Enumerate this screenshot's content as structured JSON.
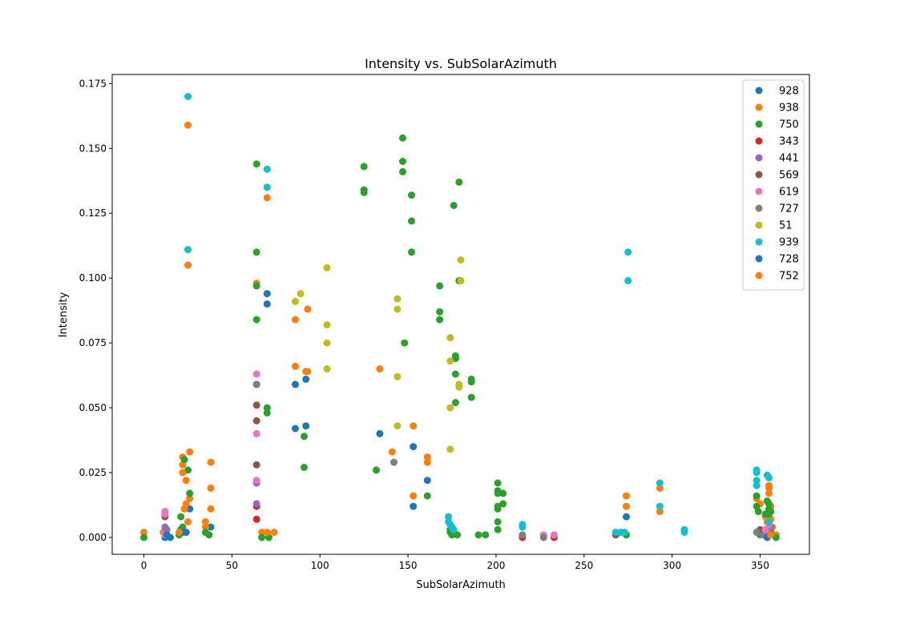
{
  "chart_data": {
    "type": "scatter",
    "title": "Intensity vs. SubSolarAzimuth",
    "xlabel": "SubSolarAzimuth",
    "ylabel": "Intensity",
    "xlim": [
      -18,
      378
    ],
    "ylim": [
      -0.0065,
      0.1785
    ],
    "xticks": [
      0,
      50,
      100,
      150,
      200,
      250,
      300,
      350
    ],
    "yticks": [
      0.0,
      0.025,
      0.05,
      0.075,
      0.1,
      0.125,
      0.15,
      0.175
    ],
    "ytick_labels": [
      "0.000",
      "0.025",
      "0.050",
      "0.075",
      "0.100",
      "0.125",
      "0.150",
      "0.175"
    ],
    "grid": false,
    "legend_position": "top-right",
    "series": [
      {
        "name": "928",
        "color": "#1f77b4",
        "points": [
          [
            12,
            0.0
          ],
          [
            15,
            0.0
          ],
          [
            21,
            0.003
          ],
          [
            24,
            0.002
          ],
          [
            26,
            0.011
          ],
          [
            38,
            0.004
          ],
          [
            70,
            0.094
          ],
          [
            70,
            0.09
          ],
          [
            86,
            0.059
          ],
          [
            86,
            0.042
          ],
          [
            92,
            0.061
          ],
          [
            92,
            0.043
          ],
          [
            134,
            0.04
          ],
          [
            153,
            0.035
          ],
          [
            153,
            0.012
          ],
          [
            161,
            0.022
          ],
          [
            274,
            0.008
          ],
          [
            352,
            0.002
          ]
        ]
      },
      {
        "name": "938",
        "color": "#ff7f0e",
        "points": [
          [
            0,
            0.002
          ],
          [
            11,
            0.002
          ],
          [
            13,
            0.001
          ],
          [
            21,
            0.002
          ],
          [
            22,
            0.031
          ],
          [
            22,
            0.028
          ],
          [
            22,
            0.025
          ],
          [
            23,
            0.011
          ],
          [
            24,
            0.013
          ],
          [
            24,
            0.022
          ],
          [
            25,
            0.159
          ],
          [
            25,
            0.105
          ],
          [
            25,
            0.006
          ],
          [
            26,
            0.015
          ],
          [
            26,
            0.033
          ],
          [
            35,
            0.006
          ],
          [
            35,
            0.004
          ],
          [
            38,
            0.029
          ],
          [
            38,
            0.019
          ],
          [
            38,
            0.011
          ],
          [
            64,
            0.098
          ],
          [
            67,
            0.002
          ],
          [
            70,
            0.135
          ],
          [
            70,
            0.131
          ],
          [
            74,
            0.002
          ],
          [
            86,
            0.084
          ],
          [
            86,
            0.066
          ],
          [
            92,
            0.064
          ],
          [
            93,
            0.088
          ],
          [
            93,
            0.064
          ],
          [
            134,
            0.065
          ],
          [
            141,
            0.033
          ],
          [
            153,
            0.043
          ],
          [
            153,
            0.016
          ],
          [
            161,
            0.031
          ],
          [
            161,
            0.029
          ],
          [
            274,
            0.016
          ],
          [
            274,
            0.012
          ],
          [
            293,
            0.019
          ],
          [
            293,
            0.01
          ],
          [
            348,
            0.015
          ],
          [
            350,
            0.013
          ],
          [
            353,
            0.008
          ],
          [
            354,
            0.006
          ],
          [
            355,
            0.019
          ],
          [
            355,
            0.02
          ],
          [
            355,
            0.017
          ],
          [
            356,
            0.012
          ],
          [
            356,
            0.007
          ],
          [
            357,
            0.004
          ],
          [
            359,
            0.001
          ]
        ]
      },
      {
        "name": "750",
        "color": "#2ca02c",
        "points": [
          [
            0,
            0.0
          ],
          [
            20,
            0.001
          ],
          [
            21,
            0.008
          ],
          [
            22,
            0.004
          ],
          [
            23,
            0.03
          ],
          [
            25,
            0.026
          ],
          [
            26,
            0.017
          ],
          [
            35,
            0.002
          ],
          [
            37,
            0.001
          ],
          [
            64,
            0.144
          ],
          [
            64,
            0.11
          ],
          [
            64,
            0.097
          ],
          [
            64,
            0.084
          ],
          [
            67,
            0.0
          ],
          [
            70,
            0.05
          ],
          [
            70,
            0.048
          ],
          [
            71,
            0.0
          ],
          [
            91,
            0.039
          ],
          [
            91,
            0.027
          ],
          [
            125,
            0.143
          ],
          [
            125,
            0.134
          ],
          [
            125,
            0.133
          ],
          [
            132,
            0.026
          ],
          [
            147,
            0.154
          ],
          [
            147,
            0.145
          ],
          [
            147,
            0.141
          ],
          [
            148,
            0.075
          ],
          [
            152,
            0.132
          ],
          [
            152,
            0.122
          ],
          [
            152,
            0.11
          ],
          [
            161,
            0.016
          ],
          [
            168,
            0.097
          ],
          [
            168,
            0.087
          ],
          [
            168,
            0.084
          ],
          [
            174,
            0.003
          ],
          [
            174,
            0.002
          ],
          [
            175,
            0.001
          ],
          [
            176,
            0.002
          ],
          [
            176,
            0.128
          ],
          [
            177,
            0.07
          ],
          [
            177,
            0.069
          ],
          [
            177,
            0.063
          ],
          [
            177,
            0.052
          ],
          [
            178,
            0.001
          ],
          [
            179,
            0.137
          ],
          [
            179,
            0.099
          ],
          [
            186,
            0.061
          ],
          [
            186,
            0.06
          ],
          [
            186,
            0.054
          ],
          [
            190,
            0.001
          ],
          [
            194,
            0.001
          ],
          [
            201,
            0.021
          ],
          [
            201,
            0.018
          ],
          [
            201,
            0.017
          ],
          [
            201,
            0.012
          ],
          [
            201,
            0.011
          ],
          [
            201,
            0.006
          ],
          [
            201,
            0.003
          ],
          [
            204,
            0.017
          ],
          [
            204,
            0.013
          ],
          [
            268,
            0.001
          ],
          [
            274,
            0.001
          ],
          [
            348,
            0.016
          ],
          [
            348,
            0.012
          ],
          [
            349,
            0.01
          ],
          [
            350,
            0.001
          ],
          [
            353,
            0.009
          ],
          [
            354,
            0.014
          ],
          [
            355,
            0.013
          ],
          [
            355,
            0.011
          ],
          [
            355,
            0.009
          ],
          [
            356,
            0.01
          ],
          [
            356,
            0.002
          ],
          [
            359,
            0.0
          ]
        ]
      },
      {
        "name": "343",
        "color": "#d62728",
        "points": [
          [
            64,
            0.007
          ],
          [
            64,
            0.012
          ],
          [
            215,
            0.0
          ],
          [
            233,
            0.0
          ]
        ]
      },
      {
        "name": "441",
        "color": "#9467bd",
        "points": [
          [
            12,
            0.004
          ],
          [
            13,
            0.003
          ],
          [
            64,
            0.013
          ],
          [
            64,
            0.021
          ],
          [
            352,
            0.001
          ],
          [
            354,
            0.002
          ],
          [
            356,
            0.004
          ]
        ]
      },
      {
        "name": "569",
        "color": "#8c564b",
        "points": [
          [
            12,
            0.008
          ],
          [
            64,
            0.028
          ],
          [
            64,
            0.045
          ],
          [
            64,
            0.051
          ],
          [
            64,
            0.059
          ],
          [
            268,
            0.001
          ],
          [
            350,
            0.003
          ]
        ]
      },
      {
        "name": "619",
        "color": "#e377c2",
        "points": [
          [
            12,
            0.01
          ],
          [
            12,
            0.009
          ],
          [
            12,
            0.001
          ],
          [
            64,
            0.063
          ],
          [
            64,
            0.04
          ],
          [
            64,
            0.022
          ],
          [
            227,
            0.001
          ],
          [
            233,
            0.001
          ],
          [
            353,
            0.003
          ],
          [
            355,
            0.005
          ]
        ]
      },
      {
        "name": "727",
        "color": "#7f7f7f",
        "points": [
          [
            64,
            0.059
          ],
          [
            142,
            0.029
          ],
          [
            215,
            0.001
          ],
          [
            227,
            0.0
          ],
          [
            348,
            0.002
          ]
        ]
      },
      {
        "name": "51",
        "color": "#bcbd22",
        "points": [
          [
            86,
            0.091
          ],
          [
            89,
            0.094
          ],
          [
            104,
            0.104
          ],
          [
            104,
            0.082
          ],
          [
            104,
            0.075
          ],
          [
            104,
            0.065
          ],
          [
            144,
            0.092
          ],
          [
            144,
            0.088
          ],
          [
            144,
            0.062
          ],
          [
            144,
            0.043
          ],
          [
            174,
            0.077
          ],
          [
            174,
            0.068
          ],
          [
            174,
            0.05
          ],
          [
            174,
            0.034
          ],
          [
            179,
            0.059
          ],
          [
            179,
            0.058
          ],
          [
            180,
            0.107
          ],
          [
            180,
            0.099
          ]
        ]
      },
      {
        "name": "939",
        "color": "#17becf",
        "points": [
          [
            25,
            0.17
          ],
          [
            25,
            0.111
          ],
          [
            70,
            0.142
          ],
          [
            70,
            0.135
          ],
          [
            173,
            0.008
          ],
          [
            173,
            0.006
          ],
          [
            174,
            0.005
          ],
          [
            175,
            0.004
          ],
          [
            176,
            0.003
          ],
          [
            215,
            0.005
          ],
          [
            215,
            0.004
          ],
          [
            268,
            0.002
          ],
          [
            271,
            0.002
          ],
          [
            273,
            0.002
          ],
          [
            275,
            0.11
          ],
          [
            275,
            0.099
          ],
          [
            293,
            0.021
          ],
          [
            293,
            0.012
          ],
          [
            307,
            0.003
          ],
          [
            307,
            0.002
          ],
          [
            348,
            0.026
          ],
          [
            348,
            0.025
          ],
          [
            348,
            0.022
          ],
          [
            348,
            0.02
          ],
          [
            354,
            0.024
          ],
          [
            355,
            0.023
          ],
          [
            355,
            0.006
          ]
        ]
      },
      {
        "name": "728",
        "color": "#1f77b4",
        "points": [
          [
            13,
            0.001
          ],
          [
            22,
            0.002
          ],
          [
            354,
            0.0
          ]
        ]
      },
      {
        "name": "752",
        "color": "#ff7f0e",
        "points": [
          [
            20,
            0.002
          ],
          [
            22,
            0.025
          ],
          [
            70,
            0.002
          ],
          [
            356,
            0.001
          ]
        ]
      }
    ]
  }
}
